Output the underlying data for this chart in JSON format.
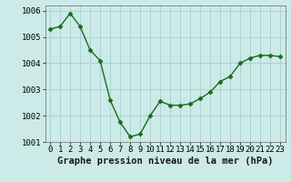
{
  "x": [
    0,
    1,
    2,
    3,
    4,
    5,
    6,
    7,
    8,
    9,
    10,
    11,
    12,
    13,
    14,
    15,
    16,
    17,
    18,
    19,
    20,
    21,
    22,
    23
  ],
  "y": [
    1005.3,
    1005.4,
    1005.9,
    1005.4,
    1004.5,
    1004.1,
    1002.6,
    1001.75,
    1001.2,
    1001.3,
    1002.0,
    1002.55,
    1002.4,
    1002.4,
    1002.45,
    1002.65,
    1002.9,
    1003.3,
    1003.5,
    1004.0,
    1004.2,
    1004.3,
    1004.3,
    1004.25
  ],
  "line_color": "#1a6b1a",
  "marker_color": "#1a6b1a",
  "bg_color": "#cceae8",
  "grid_color": "#a8cece",
  "xlabel": "Graphe pression niveau de la mer (hPa)",
  "ylim": [
    1001.0,
    1006.2
  ],
  "yticks": [
    1001,
    1002,
    1003,
    1004,
    1005,
    1006
  ],
  "xticks": [
    0,
    1,
    2,
    3,
    4,
    5,
    6,
    7,
    8,
    9,
    10,
    11,
    12,
    13,
    14,
    15,
    16,
    17,
    18,
    19,
    20,
    21,
    22,
    23
  ],
  "xlabel_fontsize": 7.5,
  "tick_fontsize": 6.5,
  "line_width": 1.0,
  "marker_size": 2.5
}
